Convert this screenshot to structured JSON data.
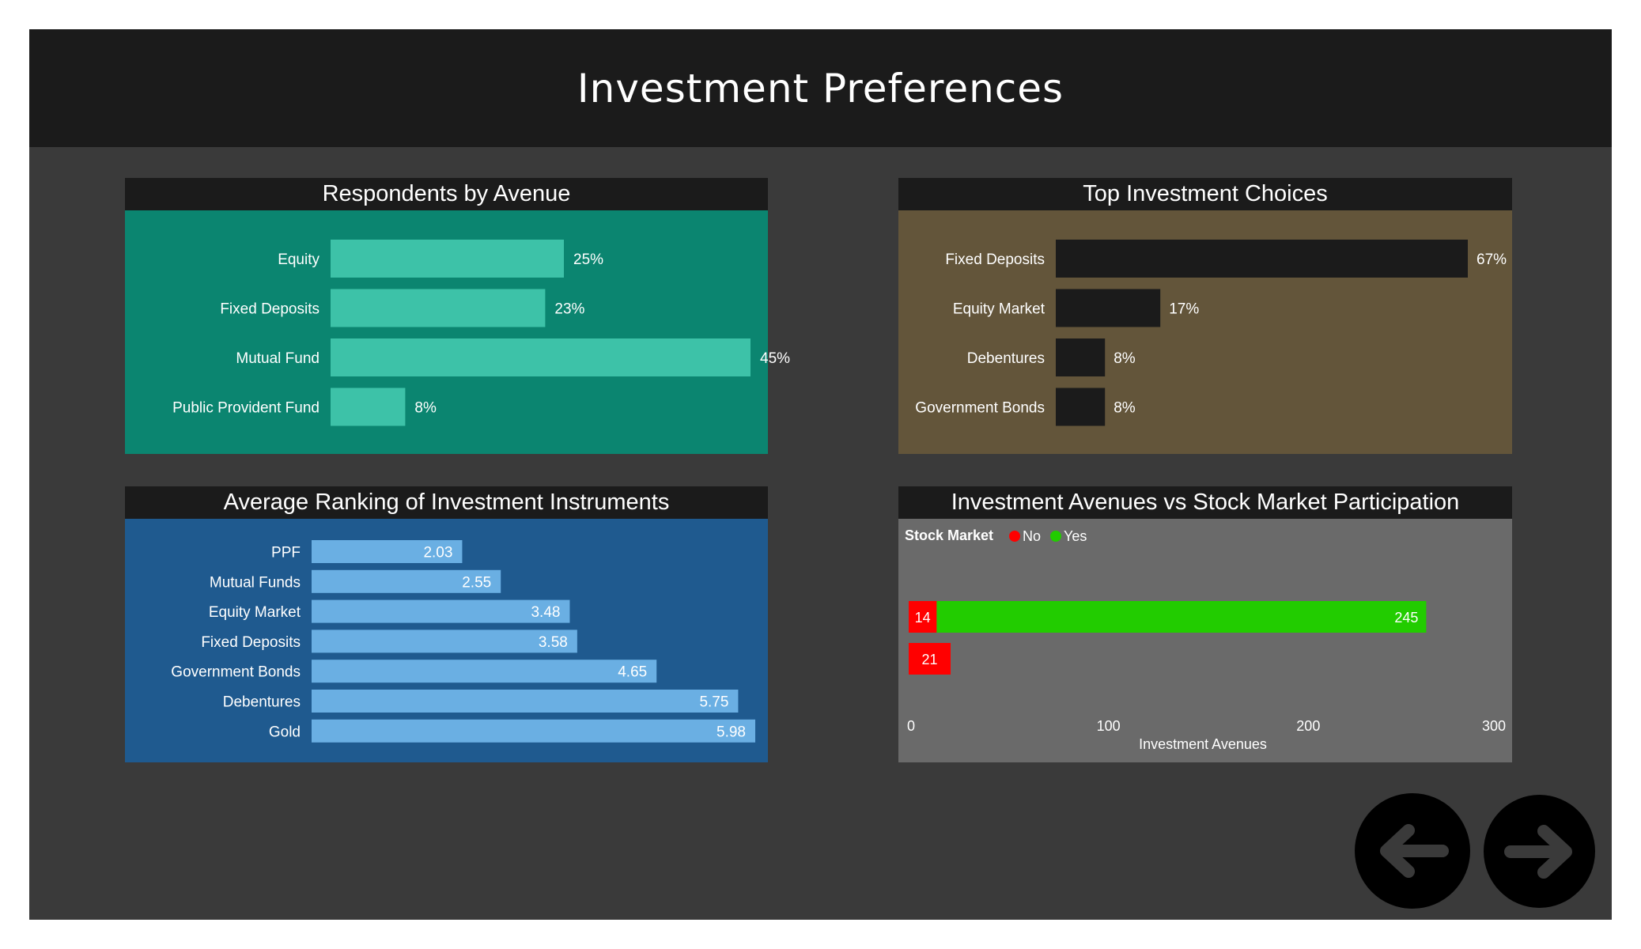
{
  "page": {
    "title": "Investment Preferences"
  },
  "colors": {
    "slide_bg": "#3a3a3a",
    "header_bg": "#1b1b1b",
    "panel1_bg": "#0b8570",
    "panel1_bar": "#3dc2a8",
    "panel2_bg": "#63553a",
    "panel2_bar": "#1b1b1b",
    "panel3_bg": "#1f5a8f",
    "panel3_bar": "#6aafe3",
    "panel4_bg": "#6a6a6a",
    "no": "#ff0000",
    "yes": "#22cc00"
  },
  "chart_data": [
    {
      "type": "bar",
      "orientation": "horizontal",
      "title": "Respondents by Avenue",
      "categories": [
        "Equity",
        "Fixed Deposits",
        "Mutual Fund",
        "Public Provident Fund"
      ],
      "values": [
        25,
        23,
        45,
        8
      ],
      "value_labels": [
        "25%",
        "23%",
        "45%",
        "8%"
      ],
      "unit": "%"
    },
    {
      "type": "bar",
      "orientation": "horizontal",
      "title": "Top Investment Choices",
      "categories": [
        "Fixed Deposits",
        "Equity Market",
        "Debentures",
        "Government Bonds"
      ],
      "values": [
        67,
        17,
        8,
        8
      ],
      "value_labels": [
        "67%",
        "17%",
        "8%",
        "8%"
      ],
      "unit": "%"
    },
    {
      "type": "bar",
      "orientation": "horizontal",
      "title": "Average Ranking of Investment Instruments",
      "categories": [
        "PPF",
        "Mutual Funds",
        "Equity Market",
        "Fixed Deposits",
        "Government Bonds",
        "Debentures",
        "Gold"
      ],
      "values": [
        2.03,
        2.55,
        3.48,
        3.58,
        4.65,
        5.75,
        5.98
      ],
      "value_labels": [
        "2.03",
        "2.55",
        "3.48",
        "3.58",
        "4.65",
        "5.75",
        "5.98"
      ]
    },
    {
      "type": "bar",
      "orientation": "horizontal",
      "stacked": true,
      "title": "Investment Avenues vs Stock Market Participation",
      "legend_title": "Stock Market",
      "legend_position": "top-left",
      "xlabel": "Investment Avenues",
      "xlim": [
        0,
        300
      ],
      "xticks": [
        "0",
        "100",
        "200",
        "300"
      ],
      "rows": 2,
      "series": [
        {
          "name": "No",
          "color": "#ff0000",
          "values": [
            14,
            21
          ]
        },
        {
          "name": "Yes",
          "color": "#22cc00",
          "values": [
            245,
            null
          ]
        }
      ]
    }
  ],
  "nav": {
    "prev_icon": "arrow-left-icon",
    "next_icon": "arrow-right-icon"
  }
}
